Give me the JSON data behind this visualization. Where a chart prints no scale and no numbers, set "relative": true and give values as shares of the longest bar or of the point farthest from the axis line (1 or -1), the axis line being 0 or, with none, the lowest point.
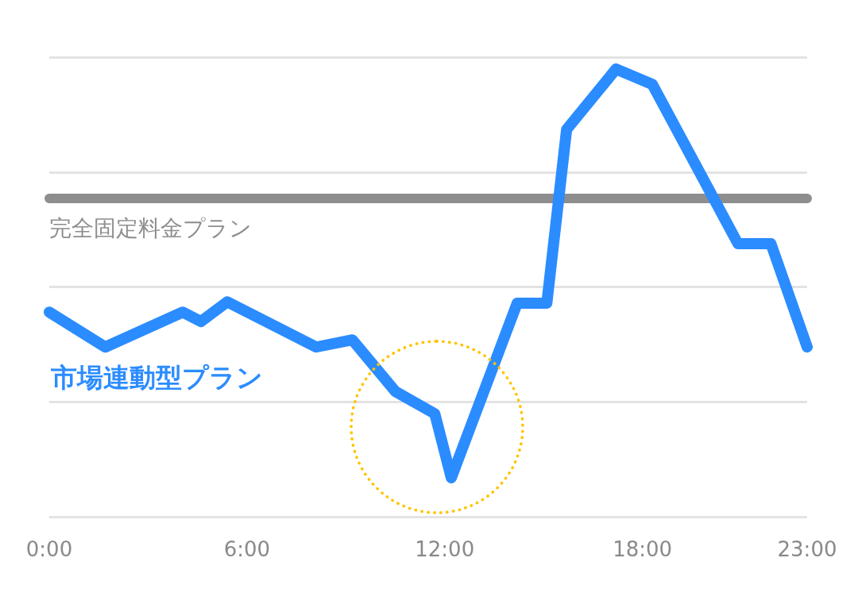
{
  "chart_data": {
    "type": "line",
    "relative": true,
    "grid": "y",
    "marker": "none",
    "line_style": "solid",
    "tick_labels": "x",
    "xlim": [
      0,
      23
    ],
    "xticks": [
      {
        "value": 0,
        "label": "0:00"
      },
      {
        "value": 6,
        "label": "6:00"
      },
      {
        "value": 12,
        "label": "12:00"
      },
      {
        "value": 18,
        "label": "18:00"
      },
      {
        "value": 23,
        "label": "23:00"
      }
    ],
    "series": [
      {
        "name": "完全固定料金プラン",
        "color": "#8e8e8e",
        "x": [
          0,
          23
        ],
        "values": [
          0.711,
          0.711
        ]
      },
      {
        "name": "市場連動型プラン",
        "color": "#2b8cff",
        "x": [
          0,
          1.7,
          4.05,
          4.6,
          5.4,
          8.1,
          9.2,
          10.5,
          11.7,
          12.2,
          14.2,
          15.1,
          15.7,
          17.2,
          18.3,
          20.9,
          21.9,
          23
        ],
        "values": [
          0.457,
          0.379,
          0.457,
          0.436,
          0.48,
          0.379,
          0.395,
          0.28,
          0.23,
          0.087,
          0.477,
          0.477,
          0.865,
          1,
          0.966,
          0.61,
          0.61,
          0.379
        ]
      }
    ]
  }
}
